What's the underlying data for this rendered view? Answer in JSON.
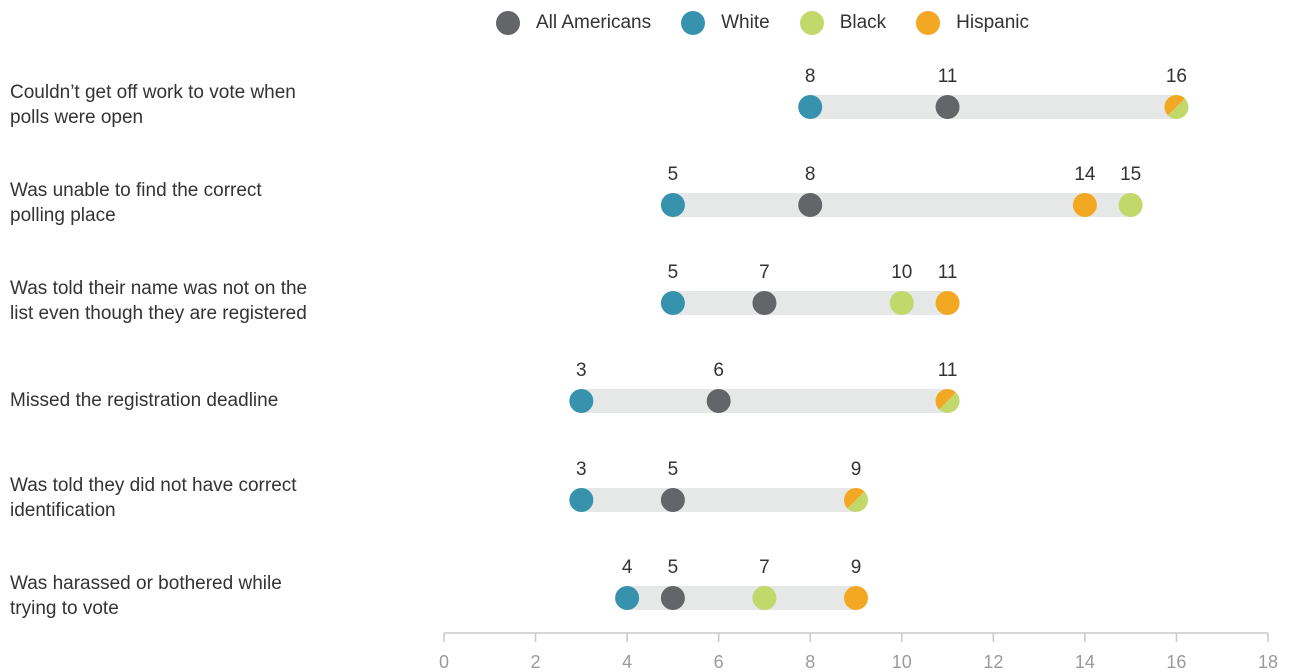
{
  "chart_data": {
    "type": "dot",
    "xlim": [
      0,
      18
    ],
    "x_ticks": [
      0,
      2,
      4,
      6,
      8,
      10,
      12,
      14,
      16,
      18
    ],
    "legend": {
      "placement": "top",
      "entries": [
        {
          "key": "all",
          "label": "All Americans",
          "color": "#646569"
        },
        {
          "key": "white",
          "label": "White",
          "color": "#3792ae"
        },
        {
          "key": "black",
          "label": "Black",
          "color": "#c1d86a"
        },
        {
          "key": "hispanic",
          "label": "Hispanic",
          "color": "#f3a823"
        }
      ]
    },
    "categories": [
      "Couldn’t get off work to vote when\npolls were open",
      "Was unable to find the correct\npolling place",
      "Was told their name was not on the\nlist even though they are registered",
      "Missed the registration deadline",
      "Was told they did not have correct\nidentification",
      "Was harassed or bothered while\ntrying to vote"
    ],
    "series": [
      {
        "key": "all",
        "values": [
          11,
          8,
          7,
          6,
          5,
          5
        ]
      },
      {
        "key": "white",
        "values": [
          8,
          5,
          5,
          3,
          3,
          4
        ]
      },
      {
        "key": "black",
        "values": [
          16,
          15,
          10,
          11,
          9,
          7
        ]
      },
      {
        "key": "hispanic",
        "values": [
          16,
          14,
          11,
          11,
          9,
          9
        ]
      }
    ],
    "grid": false
  }
}
